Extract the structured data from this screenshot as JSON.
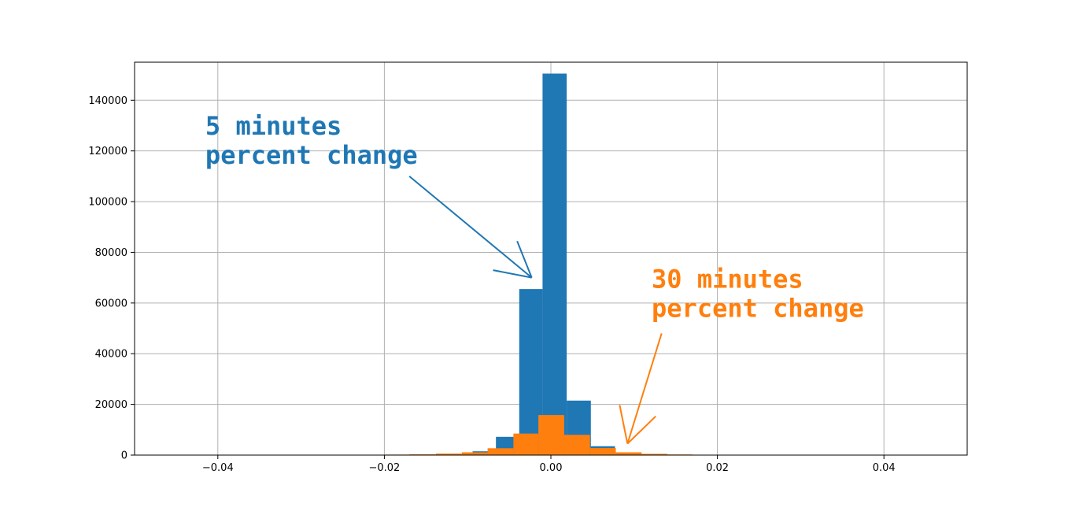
{
  "chart_data": {
    "type": "histogram",
    "xlim": [
      -0.05,
      0.05
    ],
    "ylim": [
      0,
      155000
    ],
    "grid": true,
    "x_ticks": [
      -0.04,
      -0.02,
      0.0,
      0.02,
      0.04
    ],
    "x_tick_labels": [
      "−0.04",
      "−0.02",
      "0.00",
      "0.02",
      "0.04"
    ],
    "y_ticks": [
      0,
      20000,
      40000,
      60000,
      80000,
      100000,
      120000,
      140000
    ],
    "y_tick_labels": [
      "0",
      "20000",
      "40000",
      "60000",
      "80000",
      "100000",
      "120000",
      "140000"
    ],
    "series": [
      {
        "color": "#1f77b4",
        "bins": [
          {
            "x0": -0.0094,
            "x1": -0.0066,
            "count": 1500
          },
          {
            "x0": -0.0066,
            "x1": -0.0038,
            "count": 7200
          },
          {
            "x0": -0.0038,
            "x1": -0.001,
            "count": 65500
          },
          {
            "x0": -0.001,
            "x1": 0.0019,
            "count": 150500
          },
          {
            "x0": 0.0019,
            "x1": 0.0048,
            "count": 21500
          },
          {
            "x0": 0.0048,
            "x1": 0.0077,
            "count": 3500
          }
        ]
      },
      {
        "color": "#ff7f0e",
        "bins": [
          {
            "x0": -0.026,
            "x1": -0.023,
            "count": 100
          },
          {
            "x0": -0.023,
            "x1": -0.02,
            "count": 150
          },
          {
            "x0": -0.02,
            "x1": -0.017,
            "count": 200
          },
          {
            "x0": -0.017,
            "x1": -0.0138,
            "count": 300
          },
          {
            "x0": -0.0138,
            "x1": -0.0107,
            "count": 600
          },
          {
            "x0": -0.0107,
            "x1": -0.0076,
            "count": 1100
          },
          {
            "x0": -0.0076,
            "x1": -0.0045,
            "count": 2700
          },
          {
            "x0": -0.0045,
            "x1": -0.0015,
            "count": 8500
          },
          {
            "x0": -0.0015,
            "x1": 0.0016,
            "count": 15800
          },
          {
            "x0": 0.0016,
            "x1": 0.0047,
            "count": 8000
          },
          {
            "x0": 0.0047,
            "x1": 0.0078,
            "count": 2800
          },
          {
            "x0": 0.0078,
            "x1": 0.0109,
            "count": 1100
          },
          {
            "x0": 0.0109,
            "x1": 0.014,
            "count": 500
          },
          {
            "x0": 0.014,
            "x1": 0.017,
            "count": 250
          },
          {
            "x0": 0.017,
            "x1": 0.02,
            "count": 150
          },
          {
            "x0": 0.02,
            "x1": 0.023,
            "count": 100
          },
          {
            "x0": 0.023,
            "x1": 0.0262,
            "count": 80
          }
        ]
      }
    ],
    "annotations": [
      {
        "lines": [
          "5 minutes",
          "percent change"
        ],
        "color": "#1f77b4",
        "text_x": -0.0415,
        "text_y": 126500,
        "arrow_from": [
          -0.017,
          110000
        ],
        "arrow_to": [
          -0.0023,
          70000
        ]
      },
      {
        "lines": [
          "30 minutes",
          "percent change"
        ],
        "color": "#ff7f0e",
        "text_x": 0.0121,
        "text_y": 66000,
        "arrow_from": [
          0.0133,
          48000
        ],
        "arrow_to": [
          0.0092,
          4500
        ]
      }
    ]
  }
}
